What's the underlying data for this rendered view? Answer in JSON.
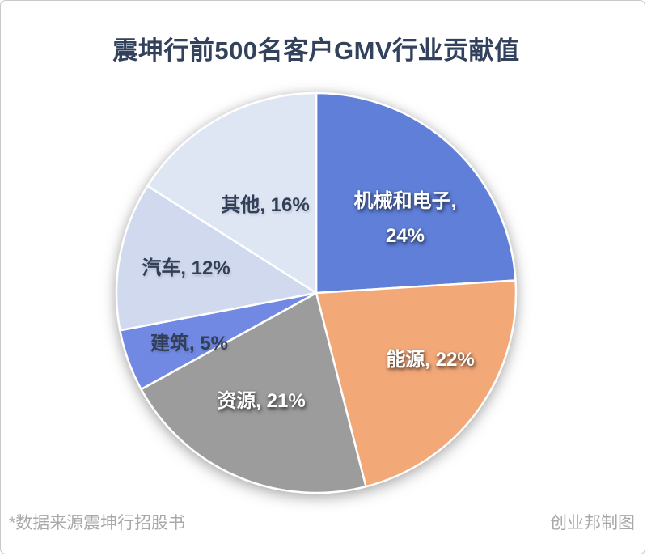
{
  "chart_data": {
    "type": "pie",
    "title": "震坤行前500名客户GMV行业贡献值",
    "labels": [
      "机械和电子",
      "能源",
      "资源",
      "建筑",
      "汽车",
      "其他"
    ],
    "values": [
      24,
      22,
      21,
      5,
      12,
      16
    ],
    "unit": "%",
    "colors": [
      "#5F7FD9",
      "#F3A878",
      "#9C9C9C",
      "#7289E4",
      "#D0D9ED",
      "#DEE6F4"
    ],
    "label_text_colors": [
      "#FFFFFF",
      "#FFFFFF",
      "#FFFFFF",
      "#323F58",
      "#323F58",
      "#323F58"
    ],
    "start_angle": 0,
    "direction": "clockwise",
    "legend": "none",
    "data_labels": "name-and-percent",
    "title_color": "#32415C"
  },
  "footer": {
    "source": "*数据来源震坤行招股书",
    "credit": "创业邦制图"
  }
}
